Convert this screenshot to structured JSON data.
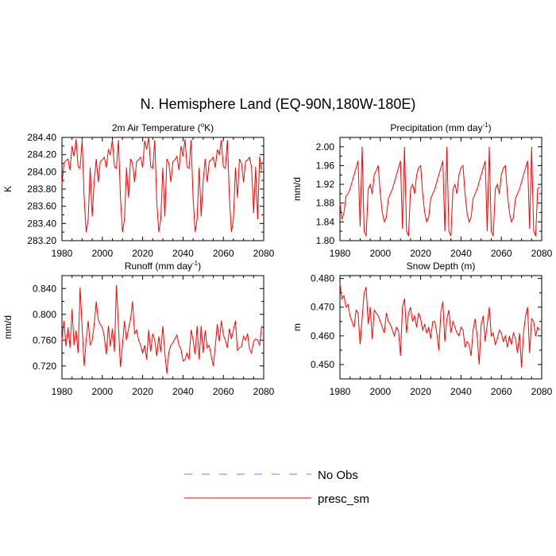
{
  "title": "N. Hemisphere Land (EQ-90N,180W-180E)",
  "legend": {
    "placement": "bottom-center",
    "items": [
      {
        "label": "No Obs",
        "color": "#7777ff",
        "dash": true
      },
      {
        "label": "presc_sm",
        "color": "#ff0000",
        "dash": false
      }
    ]
  },
  "chart_data": [
    {
      "type": "line",
      "title": "2m Air Temperature (°K)",
      "title_main": "2m Air Temperature (",
      "title_sup": "o",
      "title_tail": "K)",
      "ylabel": "K",
      "xlim": [
        1980,
        2080
      ],
      "ylim": [
        283.2,
        284.4
      ],
      "xticks": [
        "1980",
        "2000",
        "2020",
        "2040",
        "2060",
        "2080"
      ],
      "yticks": [
        "283.20",
        "283.40",
        "283.60",
        "283.80",
        "284.00",
        "284.20",
        "284.40"
      ],
      "series": [
        {
          "name": "presc_sm",
          "color": "#ff0000",
          "x_start": 1980,
          "values": [
            283.85,
            284.1,
            284.13,
            284.15,
            284.02,
            284.3,
            284.18,
            284.38,
            284.06,
            284.04,
            284.37,
            283.7,
            283.3,
            283.45,
            284.05,
            283.48,
            283.9,
            284.15,
            283.88,
            284.12,
            284.14,
            284.17,
            284.05,
            284.26,
            284.2,
            284.37,
            284.06,
            284.04,
            284.37,
            283.7,
            283.3,
            283.45,
            284.05,
            283.7,
            284.15,
            284.1,
            283.88,
            284.12,
            284.14,
            284.17,
            284.05,
            284.36,
            284.26,
            284.4,
            284.06,
            284.04,
            284.37,
            283.65,
            283.3,
            283.45,
            284.05,
            283.48,
            284.15,
            284.1,
            283.88,
            284.12,
            284.14,
            284.18,
            284.02,
            284.3,
            284.18,
            284.38,
            284.06,
            284.04,
            284.37,
            283.7,
            283.3,
            283.45,
            284.05,
            283.48,
            283.9,
            284.15,
            283.88,
            284.12,
            284.14,
            284.17,
            284.05,
            284.26,
            284.2,
            284.37,
            284.06,
            284.04,
            284.37,
            283.7,
            283.3,
            283.45,
            284.05,
            283.7,
            284.15,
            284.1,
            283.88,
            284.12,
            284.14,
            284.17,
            284.05,
            283.52,
            284.06,
            283.45,
            284.18,
            284.02
          ]
        }
      ]
    },
    {
      "type": "line",
      "title": "Precipitation (mm day-1)",
      "title_main": "Precipitation (mm day",
      "title_sup": "-1",
      "title_tail": ")",
      "ylabel": "mm/d",
      "xlim": [
        1980,
        2080
      ],
      "ylim": [
        1.8,
        2.02
      ],
      "xticks": [
        "1980",
        "2000",
        "2020",
        "2040",
        "2060",
        "2080"
      ],
      "yticks": [
        "1.80",
        "1.84",
        "1.88",
        "1.92",
        "1.96",
        "2.00"
      ],
      "series": [
        {
          "name": "presc_sm",
          "color": "#ff0000",
          "x_start": 1980,
          "values": [
            1.88,
            1.845,
            1.86,
            1.895,
            1.9,
            1.91,
            1.925,
            1.94,
            1.955,
            1.97,
            1.83,
            2.0,
            1.82,
            1.81,
            1.91,
            1.92,
            1.9,
            1.94,
            1.95,
            1.96,
            1.9,
            1.86,
            1.84,
            1.85,
            1.89,
            1.9,
            1.91,
            1.925,
            1.94,
            1.955,
            1.97,
            1.825,
            2.0,
            1.82,
            1.81,
            1.91,
            1.92,
            1.9,
            1.94,
            1.955,
            1.96,
            1.9,
            1.86,
            1.84,
            1.85,
            1.89,
            1.9,
            1.91,
            1.925,
            1.94,
            1.955,
            1.97,
            1.82,
            2.0,
            1.82,
            1.81,
            1.91,
            1.92,
            1.9,
            1.94,
            1.955,
            1.96,
            1.9,
            1.86,
            1.84,
            1.85,
            1.89,
            1.9,
            1.91,
            1.925,
            1.94,
            1.955,
            1.97,
            1.82,
            2.0,
            1.82,
            1.81,
            1.91,
            1.92,
            1.9,
            1.94,
            1.955,
            1.96,
            1.9,
            1.86,
            1.84,
            1.85,
            1.89,
            1.9,
            1.91,
            1.925,
            1.94,
            1.955,
            1.97,
            1.825,
            2.0,
            1.82,
            1.81,
            1.91,
            1.915
          ]
        }
      ]
    },
    {
      "type": "line",
      "title": "Runoff (mm day-1)",
      "title_main": "Runoff (mm day",
      "title_sup": "-1",
      "title_tail": ")",
      "ylabel": "mm/d",
      "xlim": [
        1980,
        2080
      ],
      "ylim": [
        0.7,
        0.86
      ],
      "xticks": [
        "1980",
        "2000",
        "2020",
        "2040",
        "2060",
        "2080"
      ],
      "yticks": [
        "0.720",
        "0.760",
        "0.800",
        "0.840"
      ],
      "series": [
        {
          "name": "presc_sm",
          "color": "#ff0000",
          "x_start": 1980,
          "values": [
            0.76,
            0.79,
            0.75,
            0.78,
            0.748,
            0.808,
            0.752,
            0.775,
            0.74,
            0.842,
            0.78,
            0.72,
            0.76,
            0.79,
            0.752,
            0.76,
            0.785,
            0.82,
            0.792,
            0.784,
            0.78,
            0.765,
            0.738,
            0.782,
            0.75,
            0.778,
            0.742,
            0.845,
            0.782,
            0.718,
            0.752,
            0.79,
            0.76,
            0.778,
            0.792,
            0.82,
            0.77,
            0.776,
            0.76,
            0.752,
            0.74,
            0.752,
            0.73,
            0.776,
            0.742,
            0.77,
            0.76,
            0.735,
            0.766,
            0.742,
            0.782,
            0.74,
            0.708,
            0.742,
            0.752,
            0.756,
            0.762,
            0.768,
            0.752,
            0.746,
            0.728,
            0.73,
            0.74,
            0.73,
            0.776,
            0.76,
            0.738,
            0.782,
            0.73,
            0.782,
            0.74,
            0.775,
            0.748,
            0.752,
            0.735,
            0.72,
            0.75,
            0.785,
            0.758,
            0.79,
            0.768,
            0.76,
            0.748,
            0.778,
            0.762,
            0.776,
            0.79,
            0.744,
            0.748,
            0.75,
            0.766,
            0.76,
            0.77,
            0.746,
            0.74,
            0.758,
            0.762,
            0.76,
            0.752,
            0.782
          ]
        }
      ]
    },
    {
      "type": "line",
      "title": "Snow Depth (m)",
      "title_main": "Snow Depth (m)",
      "title_sup": "",
      "title_tail": "",
      "ylabel": "m",
      "xlim": [
        1980,
        2080
      ],
      "ylim": [
        0.445,
        0.481
      ],
      "xticks": [
        "1980",
        "2000",
        "2020",
        "2040",
        "2060",
        "2080"
      ],
      "yticks": [
        "0.450",
        "0.460",
        "0.470",
        "0.480"
      ],
      "series": [
        {
          "name": "presc_sm",
          "color": "#ff0000",
          "x_start": 1980,
          "values": [
            0.478,
            0.473,
            0.474,
            0.47,
            0.471,
            0.467,
            0.465,
            0.463,
            0.469,
            0.468,
            0.457,
            0.466,
            0.475,
            0.477,
            0.464,
            0.47,
            0.459,
            0.469,
            0.468,
            0.467,
            0.465,
            0.463,
            0.461,
            0.468,
            0.465,
            0.464,
            0.462,
            0.46,
            0.463,
            0.462,
            0.453,
            0.47,
            0.473,
            0.461,
            0.468,
            0.47,
            0.465,
            0.467,
            0.463,
            0.468,
            0.466,
            0.462,
            0.464,
            0.461,
            0.463,
            0.459,
            0.465,
            0.465,
            0.461,
            0.455,
            0.468,
            0.472,
            0.458,
            0.466,
            0.469,
            0.461,
            0.465,
            0.463,
            0.461,
            0.46,
            0.463,
            0.462,
            0.456,
            0.458,
            0.457,
            0.453,
            0.462,
            0.466,
            0.46,
            0.45,
            0.464,
            0.467,
            0.458,
            0.464,
            0.47,
            0.46,
            0.461,
            0.457,
            0.459,
            0.462,
            0.461,
            0.458,
            0.46,
            0.456,
            0.46,
            0.457,
            0.461,
            0.459,
            0.454,
            0.461,
            0.449,
            0.461,
            0.467,
            0.47,
            0.454,
            0.466,
            0.465,
            0.46,
            0.463,
            0.462
          ]
        }
      ]
    }
  ]
}
